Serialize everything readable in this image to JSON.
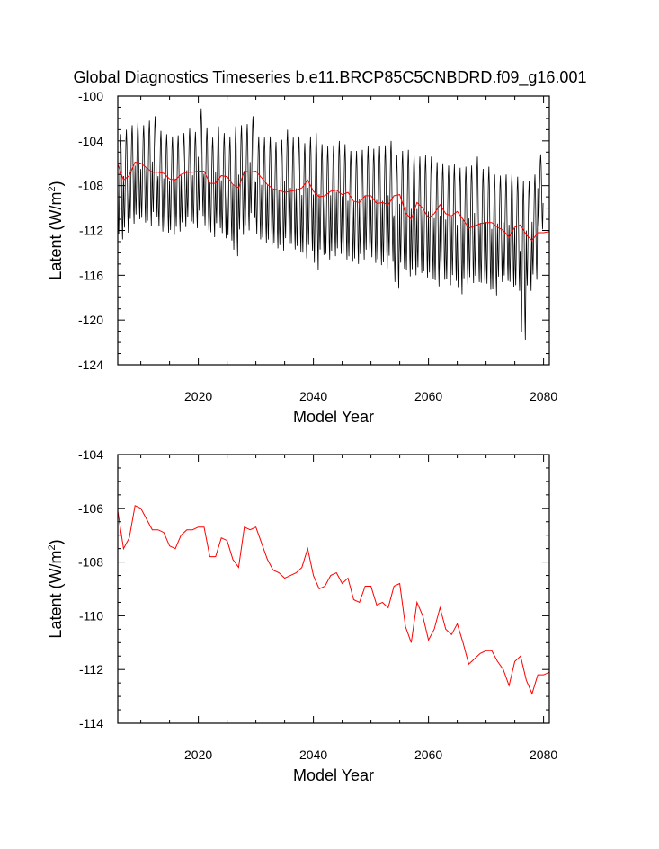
{
  "figure": {
    "title": "Global Diagnostics Timeseries b.e11.BRCP85C5CNBDRD.f09_g16.001"
  },
  "chart_data": [
    {
      "type": "line",
      "panel": "top",
      "xlabel": "Model Year",
      "ylabel_prefix": "Latent (W/m",
      "ylabel_sup": "2",
      "ylabel_suffix": ")",
      "xlim": [
        2006,
        2081
      ],
      "ylim": [
        -124,
        -100
      ],
      "xticks": [
        2020,
        2040,
        2060,
        2080
      ],
      "xtick_labels": [
        "2020",
        "2040",
        "2060",
        "2080"
      ],
      "yticks": [
        -124,
        -120,
        -116,
        -112,
        -108,
        -104,
        -100
      ],
      "ytick_labels": [
        "-124",
        "-120",
        "-116",
        "-112",
        "-108",
        "-104",
        "-100"
      ],
      "grid": false,
      "series": [
        {
          "kind": "monthly",
          "color": "#000000",
          "description_source": "monthly oscillation around annual mean",
          "annual_max": [
            -103.4,
            -103.0,
            -102.6,
            -102.3,
            -102.6,
            -102.2,
            -101.8,
            -103.1,
            -103.4,
            -103.6,
            -103.5,
            -103.3,
            -102.9,
            -103.2,
            -101.1,
            -102.8,
            -103.7,
            -102.7,
            -103.3,
            -103.6,
            -102.7,
            -102.6,
            -102.5,
            -101.8,
            -103.6,
            -103.7,
            -103.6,
            -104.1,
            -103.9,
            -103.0,
            -103.7,
            -103.6,
            -104.2,
            -103.6,
            -103.3,
            -104.3,
            -104.5,
            -104.4,
            -104.0,
            -104.3,
            -104.9,
            -104.9,
            -104.8,
            -104.5,
            -104.7,
            -104.5,
            -104.4,
            -104.0,
            -105.3,
            -104.9,
            -104.8,
            -105.2,
            -105.4,
            -105.3,
            -105.4,
            -105.9,
            -106.0,
            -106.2,
            -106.1,
            -106.4,
            -106.3,
            -106.2,
            -105.4,
            -106.5,
            -106.3,
            -107.0,
            -107.1,
            -107.0,
            -106.9,
            -107.2,
            -107.6,
            -107.6,
            -107.0,
            -105.2
          ],
          "annual_min": [
            -112.8,
            -112.2,
            -111.4,
            -111.0,
            -111.3,
            -111.6,
            -110.8,
            -112.1,
            -112.2,
            -112.4,
            -112.1,
            -111.7,
            -111.2,
            -111.8,
            -110.7,
            -112.0,
            -112.6,
            -111.8,
            -112.7,
            -112.9,
            -114.3,
            -112.4,
            -112.0,
            -110.9,
            -112.8,
            -113.1,
            -113.3,
            -113.6,
            -113.8,
            -113.2,
            -113.7,
            -113.9,
            -114.5,
            -113.8,
            -115.5,
            -114.2,
            -114.6,
            -114.3,
            -114.1,
            -114.6,
            -114.8,
            -115.0,
            -114.6,
            -114.2,
            -114.9,
            -115.1,
            -115.4,
            -114.8,
            -117.2,
            -115.4,
            -116.1,
            -116.0,
            -115.8,
            -116.2,
            -116.3,
            -117.0,
            -116.4,
            -116.9,
            -116.5,
            -117.7,
            -116.8,
            -116.7,
            -116.6,
            -117.2,
            -117.3,
            -117.8,
            -116.6,
            -116.5,
            -117.1,
            -117.4,
            -121.8,
            -117.4,
            -116.4,
            -111.9
          ]
        },
        {
          "kind": "annual",
          "color": "#ff0000",
          "x": [
            2006,
            2007,
            2008,
            2009,
            2010,
            2011,
            2012,
            2013,
            2014,
            2015,
            2016,
            2017,
            2018,
            2019,
            2020,
            2021,
            2022,
            2023,
            2024,
            2025,
            2026,
            2027,
            2028,
            2029,
            2030,
            2031,
            2032,
            2033,
            2034,
            2035,
            2036,
            2037,
            2038,
            2039,
            2040,
            2041,
            2042,
            2043,
            2044,
            2045,
            2046,
            2047,
            2048,
            2049,
            2050,
            2051,
            2052,
            2053,
            2054,
            2055,
            2056,
            2057,
            2058,
            2059,
            2060,
            2061,
            2062,
            2063,
            2064,
            2065,
            2066,
            2067,
            2068,
            2069,
            2070,
            2071,
            2072,
            2073,
            2074,
            2075,
            2076,
            2077,
            2078,
            2079,
            2080,
            2081
          ],
          "values": [
            -106.1,
            -107.5,
            -107.1,
            -105.9,
            -106.0,
            -106.4,
            -106.8,
            -106.8,
            -106.9,
            -107.4,
            -107.5,
            -107.0,
            -106.8,
            -106.8,
            -106.7,
            -106.7,
            -107.8,
            -107.8,
            -107.1,
            -107.2,
            -107.9,
            -108.2,
            -106.7,
            -106.8,
            -106.7,
            -107.3,
            -107.9,
            -108.3,
            -108.4,
            -108.6,
            -108.5,
            -108.4,
            -108.2,
            -107.5,
            -108.5,
            -109.0,
            -108.9,
            -108.5,
            -108.4,
            -108.8,
            -108.6,
            -109.4,
            -109.5,
            -108.9,
            -108.9,
            -109.6,
            -109.5,
            -109.7,
            -108.9,
            -108.8,
            -110.4,
            -111.0,
            -109.5,
            -110.0,
            -110.9,
            -110.5,
            -109.7,
            -110.5,
            -110.7,
            -110.3,
            -111.0,
            -111.8,
            -111.6,
            -111.4,
            -111.3,
            -111.3,
            -111.7,
            -112.0,
            -112.6,
            -111.7,
            -111.5,
            -112.4,
            -112.9,
            -112.2,
            -112.2,
            -112.1
          ]
        }
      ]
    },
    {
      "type": "line",
      "panel": "bottom",
      "xlabel": "Model Year",
      "ylabel_prefix": "Latent (W/m",
      "ylabel_sup": "2",
      "ylabel_suffix": ")",
      "xlim": [
        2006,
        2081
      ],
      "ylim": [
        -114,
        -104
      ],
      "xticks": [
        2020,
        2040,
        2060,
        2080
      ],
      "xtick_labels": [
        "2020",
        "2040",
        "2060",
        "2080"
      ],
      "yticks": [
        -114,
        -112,
        -110,
        -108,
        -106,
        -104
      ],
      "ytick_labels": [
        "-114",
        "-112",
        "-110",
        "-108",
        "-106",
        "-104"
      ],
      "grid": false,
      "series": [
        {
          "kind": "annual",
          "color": "#ff0000",
          "x": [
            2006,
            2007,
            2008,
            2009,
            2010,
            2011,
            2012,
            2013,
            2014,
            2015,
            2016,
            2017,
            2018,
            2019,
            2020,
            2021,
            2022,
            2023,
            2024,
            2025,
            2026,
            2027,
            2028,
            2029,
            2030,
            2031,
            2032,
            2033,
            2034,
            2035,
            2036,
            2037,
            2038,
            2039,
            2040,
            2041,
            2042,
            2043,
            2044,
            2045,
            2046,
            2047,
            2048,
            2049,
            2050,
            2051,
            2052,
            2053,
            2054,
            2055,
            2056,
            2057,
            2058,
            2059,
            2060,
            2061,
            2062,
            2063,
            2064,
            2065,
            2066,
            2067,
            2068,
            2069,
            2070,
            2071,
            2072,
            2073,
            2074,
            2075,
            2076,
            2077,
            2078,
            2079,
            2080,
            2081
          ],
          "values": [
            -106.1,
            -107.5,
            -107.1,
            -105.9,
            -106.0,
            -106.4,
            -106.8,
            -106.8,
            -106.9,
            -107.4,
            -107.5,
            -107.0,
            -106.8,
            -106.8,
            -106.7,
            -106.7,
            -107.8,
            -107.8,
            -107.1,
            -107.2,
            -107.9,
            -108.2,
            -106.7,
            -106.8,
            -106.7,
            -107.3,
            -107.9,
            -108.3,
            -108.4,
            -108.6,
            -108.5,
            -108.4,
            -108.2,
            -107.5,
            -108.5,
            -109.0,
            -108.9,
            -108.5,
            -108.4,
            -108.8,
            -108.6,
            -109.4,
            -109.5,
            -108.9,
            -108.9,
            -109.6,
            -109.5,
            -109.7,
            -108.9,
            -108.8,
            -110.4,
            -111.0,
            -109.5,
            -110.0,
            -110.9,
            -110.5,
            -109.7,
            -110.5,
            -110.7,
            -110.3,
            -111.0,
            -111.8,
            -111.6,
            -111.4,
            -111.3,
            -111.3,
            -111.7,
            -112.0,
            -112.6,
            -111.7,
            -111.5,
            -112.4,
            -112.9,
            -112.2,
            -112.2,
            -112.1
          ]
        }
      ]
    }
  ]
}
